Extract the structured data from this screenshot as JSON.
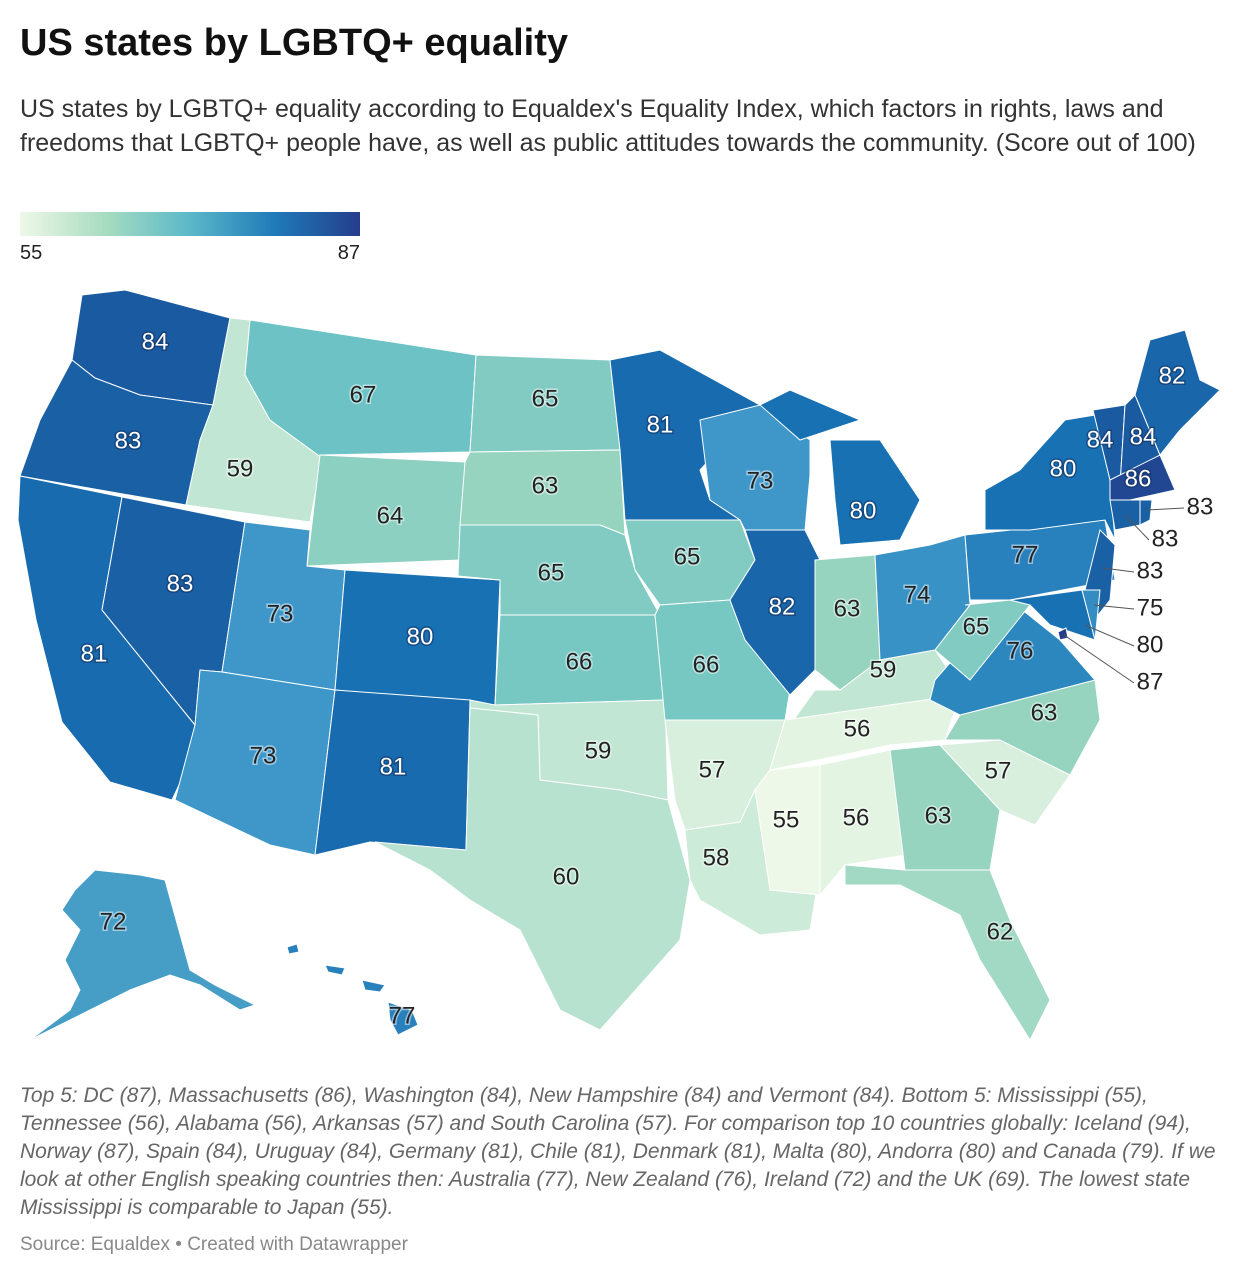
{
  "title": "US states by LGBTQ+ equality",
  "subtitle": "US states by LGBTQ+ equality according to Equaldex's Equality Index, which factors in rights, laws and freedoms that LGBTQ+ people have, as well as public attitudes towards the community. (Score out of 100)",
  "legend": {
    "min": "55",
    "max": "87",
    "colors": [
      "#eef8e8",
      "#a7dcc0",
      "#5bb8c9",
      "#1f7ab8",
      "#253e8c"
    ]
  },
  "chart_data": {
    "type": "choropleth",
    "value_range": [
      55,
      87
    ],
    "states": [
      {
        "id": "WA",
        "value": 84
      },
      {
        "id": "OR",
        "value": 83
      },
      {
        "id": "CA",
        "value": 81
      },
      {
        "id": "ID",
        "value": 59
      },
      {
        "id": "NV",
        "value": 83
      },
      {
        "id": "MT",
        "value": 67
      },
      {
        "id": "WY",
        "value": 64
      },
      {
        "id": "UT",
        "value": 73
      },
      {
        "id": "AZ",
        "value": 73
      },
      {
        "id": "CO",
        "value": 80
      },
      {
        "id": "NM",
        "value": 81
      },
      {
        "id": "ND",
        "value": 65
      },
      {
        "id": "SD",
        "value": 63
      },
      {
        "id": "NE",
        "value": 65
      },
      {
        "id": "KS",
        "value": 66
      },
      {
        "id": "OK",
        "value": 59
      },
      {
        "id": "TX",
        "value": 60
      },
      {
        "id": "MN",
        "value": 81
      },
      {
        "id": "IA",
        "value": 65
      },
      {
        "id": "MO",
        "value": 66
      },
      {
        "id": "AR",
        "value": 57
      },
      {
        "id": "LA",
        "value": 58
      },
      {
        "id": "WI",
        "value": 73
      },
      {
        "id": "IL",
        "value": 82
      },
      {
        "id": "MI",
        "value": 80
      },
      {
        "id": "IN",
        "value": 63
      },
      {
        "id": "OH",
        "value": 74
      },
      {
        "id": "KY",
        "value": 59
      },
      {
        "id": "TN",
        "value": 56
      },
      {
        "id": "MS",
        "value": 55
      },
      {
        "id": "AL",
        "value": 56
      },
      {
        "id": "GA",
        "value": 63
      },
      {
        "id": "FL",
        "value": 62
      },
      {
        "id": "SC",
        "value": 57
      },
      {
        "id": "NC",
        "value": 63
      },
      {
        "id": "VA",
        "value": 76
      },
      {
        "id": "WV",
        "value": 65
      },
      {
        "id": "PA",
        "value": 77
      },
      {
        "id": "NY",
        "value": 80
      },
      {
        "id": "NJ",
        "value": 83
      },
      {
        "id": "MD",
        "value": 80
      },
      {
        "id": "DE",
        "value": 75
      },
      {
        "id": "DC",
        "value": 87
      },
      {
        "id": "VT",
        "value": 84
      },
      {
        "id": "NH",
        "value": 84
      },
      {
        "id": "ME",
        "value": 82
      },
      {
        "id": "MA",
        "value": 86
      },
      {
        "id": "CT",
        "value": 83
      },
      {
        "id": "RI",
        "value": 83
      },
      {
        "id": "AK",
        "value": 72
      },
      {
        "id": "HI",
        "value": 77
      }
    ]
  },
  "notes": "Top 5: DC (87), Massachusetts (86), Washington (84), New Hampshire (84) and Vermont (84). Bottom 5: Mississippi (55), Tennessee (56), Alabama (56), Arkansas (57) and South Carolina (57). For comparison top 10 countries globally: Iceland (94), Norway (87), Spain (84), Uruguay (84), Germany (81), Chile (81), Denmark (81), Malta (80), Andorra (80) and Canada (79). If we look at other English speaking countries then: Australia (77), New Zealand (76), Ireland (72) and the UK (69). The lowest state Mississippi is comparable to Japan (55).",
  "source": "Source: Equaldex • Created with Datawrapper"
}
